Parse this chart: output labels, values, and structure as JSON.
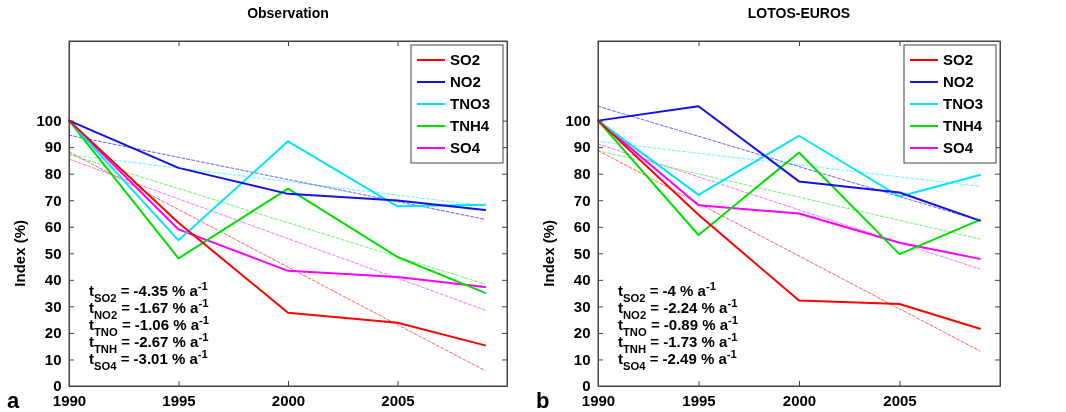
{
  "chart_data": [
    {
      "type": "line",
      "title": "Observation",
      "ylabel": "Index (%)",
      "x": [
        1990,
        1995,
        2000,
        2005,
        2009
      ],
      "xlim": [
        1990,
        2010
      ],
      "xticks": [
        1990,
        1995,
        2000,
        2005
      ],
      "ylim": [
        0,
        130
      ],
      "yticks": [
        0,
        10,
        20,
        30,
        40,
        50,
        60,
        70,
        80,
        90,
        100
      ],
      "grid": false,
      "legend": "top right",
      "line_style": "solid",
      "marker": "none",
      "series": [
        {
          "name": "SO2",
          "color": "#ff0000",
          "values": [
            100,
            61.5,
            27.6,
            23.8,
            15.3
          ]
        },
        {
          "name": "NO2",
          "color": "#1010f0",
          "values": [
            100,
            82.2,
            72.4,
            69.9,
            66.3
          ]
        },
        {
          "name": "TNO3",
          "color": "#00e5ff",
          "values": [
            100,
            54.9,
            92.2,
            67.7,
            68.3
          ]
        },
        {
          "name": "TNH4",
          "color": "#00e000",
          "values": [
            100,
            48.1,
            74.4,
            48.6,
            35.1
          ]
        },
        {
          "name": "SO4",
          "color": "#ff00ff",
          "values": [
            100,
            59,
            43.4,
            41.1,
            37.3
          ]
        },
        {
          "type": "line",
          "color": "#ff5050",
          "line_style": "dashed",
          "values": [
            88.2,
            66.5,
            44.8,
            23.1,
            5.8
          ]
        },
        {
          "type": "line",
          "color": "#5050f0",
          "line_style": "dashed",
          "values": [
            94.5,
            86.2,
            77.8,
            69.5,
            62.8
          ]
        },
        {
          "type": "line",
          "color": "#60f0ff",
          "line_style": "dashed",
          "values": [
            87.2,
            82.1,
            77.0,
            71.9,
            67.9
          ]
        },
        {
          "type": "line",
          "color": "#60f060",
          "line_style": "dashed",
          "values": [
            87.2,
            74.4,
            61.5,
            48.7,
            38.4
          ]
        },
        {
          "type": "line",
          "color": "#ff60ff",
          "line_style": "dashed",
          "values": [
            85.5,
            70.5,
            55.5,
            40.6,
            28.6
          ]
        }
      ],
      "annotations": [
        "t$_{SO2}$ = -4.35 % a$^{-1}$",
        "t$_{NO2}$ = -1.67 % a$^{-1}$",
        "t$_{TNO}$ = -1.06 % a$^{-1}$",
        "t$_{TNH}$ = -2.67 % a$^{-1}$",
        "t$_{SO4}$ = -3.01 % a$^{-1}$",
        "a"
      ]
    },
    {
      "type": "line",
      "title": "LOTOS-EUROS",
      "ylabel": "Index (%)",
      "x": [
        1990,
        1995,
        2000,
        2005,
        2009
      ],
      "xlim": [
        1990,
        2010
      ],
      "xticks": [
        1990,
        1995,
        2000,
        2005
      ],
      "ylim": [
        0,
        130
      ],
      "yticks": [
        0,
        10,
        20,
        30,
        40,
        50,
        60,
        70,
        80,
        90,
        100
      ],
      "grid": false,
      "legend": "top right",
      "line_style": "solid",
      "marker": "none",
      "series": [
        {
          "name": "SO2",
          "color": "#ff0000",
          "values": [
            100,
            64.5,
            32.2,
            30.9,
            21.6
          ]
        },
        {
          "name": "NO2",
          "color": "#1010f0",
          "values": [
            100,
            105.4,
            77.1,
            72.9,
            62.3
          ]
        },
        {
          "name": "TNO3",
          "color": "#00e5ff",
          "values": [
            100,
            72,
            94.3,
            71.4,
            79.5
          ]
        },
        {
          "name": "TNH4",
          "color": "#00e000",
          "values": [
            100,
            56.9,
            88,
            49.7,
            62.6
          ]
        },
        {
          "name": "SO4",
          "color": "#ff00ff",
          "values": [
            100,
            68.1,
            65,
            54,
            47.9
          ]
        },
        {
          "type": "line",
          "color": "#ff5050",
          "line_style": "dashed",
          "values": [
            88.7,
            68.8,
            49.0,
            29.1,
            13.2
          ]
        },
        {
          "type": "line",
          "color": "#5050f0",
          "line_style": "dashed",
          "values": [
            105.4,
            94.1,
            82.7,
            71.4,
            62.3
          ]
        },
        {
          "type": "line",
          "color": "#60f0ff",
          "line_style": "dashed",
          "values": [
            92.2,
            87.7,
            83.3,
            78.8,
            75.2
          ]
        },
        {
          "type": "line",
          "color": "#60f060",
          "line_style": "dashed",
          "values": [
            88.7,
            79.9,
            71.2,
            62.4,
            55.4
          ]
        },
        {
          "type": "line",
          "color": "#ff60ff",
          "line_style": "dashed",
          "values": [
            91.2,
            78.8,
            66.4,
            54.0,
            44.1
          ]
        }
      ],
      "annotations": [
        "t$_{SO2}$ = -4 % a$^{-1}$",
        "t$_{NO2}$ = -2.24 % a$^{-1}$",
        "t$_{TNO}$ = -0.89 % a$^{-1}$",
        "t$_{TNH}$ = -1.73 % a$^{-1}$",
        "t$_{SO4}$ = -2.49 % a$^{-1}$",
        "b"
      ]
    }
  ]
}
